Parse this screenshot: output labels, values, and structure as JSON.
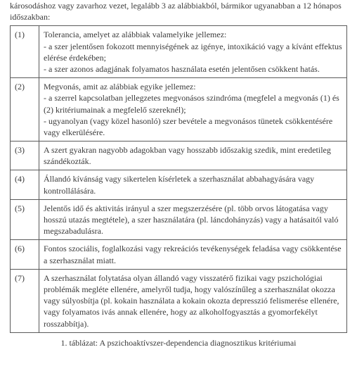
{
  "intro": "károsodáshoz vagy zavarhoz vezet, legalább 3 az alábbiakból, bármikor ugyanabban a 12 hónapos időszakban:",
  "rows": [
    {
      "n": "(1)",
      "text": "Tolerancia, amelyet az alábbiak valamelyike jellemez:\n- a szer jelentősen fokozott mennyiségének az igénye, intoxikáció vagy a kívánt effektus elérése érdekében;\n- a szer azonos adagjának folyamatos használata esetén jelentősen csökkent hatás."
    },
    {
      "n": "(2)",
      "text": "Megvonás, amit az alábbiak egyike jellemez:\n- a szerrel kapcsolatban jellegzetes megvonásos szindróma (megfelel a megvonás (1) és (2) kritériumainak a megfelelő szereknél);\n- ugyanolyan (vagy közel hasonló) szer bevétele a megvonásos tünetek csökkentésére vagy elkerülésére."
    },
    {
      "n": "(3)",
      "text": "A szert gyakran nagyobb adagokban vagy hosszabb időszakig szedik, mint eredetileg szándékozták."
    },
    {
      "n": "(4)",
      "text": "Állandó kívánság vagy sikertelen kísérletek a szerhasználat abbahagyására vagy kontrollálására."
    },
    {
      "n": "(5)",
      "text": "Jelentős idő és aktivitás irányul a szer megszerzésére (pl. több orvos látogatása vagy hosszú utazás megtétele), a szer használatára (pl. láncdohányzás) vagy a hatásaitól való megszabadulásra."
    },
    {
      "n": "(6)",
      "text": "Fontos szociális, foglalkozási vagy rekreációs tevékenységek feladása vagy csökkentése a szerhasználat miatt."
    },
    {
      "n": "(7)",
      "text": "A szerhasználat folytatása olyan állandó vagy visszatérő fizikai vagy pszichológiai problémák megléte ellenére, amelyről tudja, hogy valószínűleg a szerhasználat okozza vagy súlyosbítja (pl. kokain használata a kokain okozta depresszió felismerése ellenére, vagy folyamatos ivás annak ellenére, hogy az alkoholfogyasztás a gyomorfekélyt rosszabbítja)."
    }
  ],
  "caption": "1. táblázat: A pszichoaktívszer-dependencia diagnosztikus kritériumai"
}
